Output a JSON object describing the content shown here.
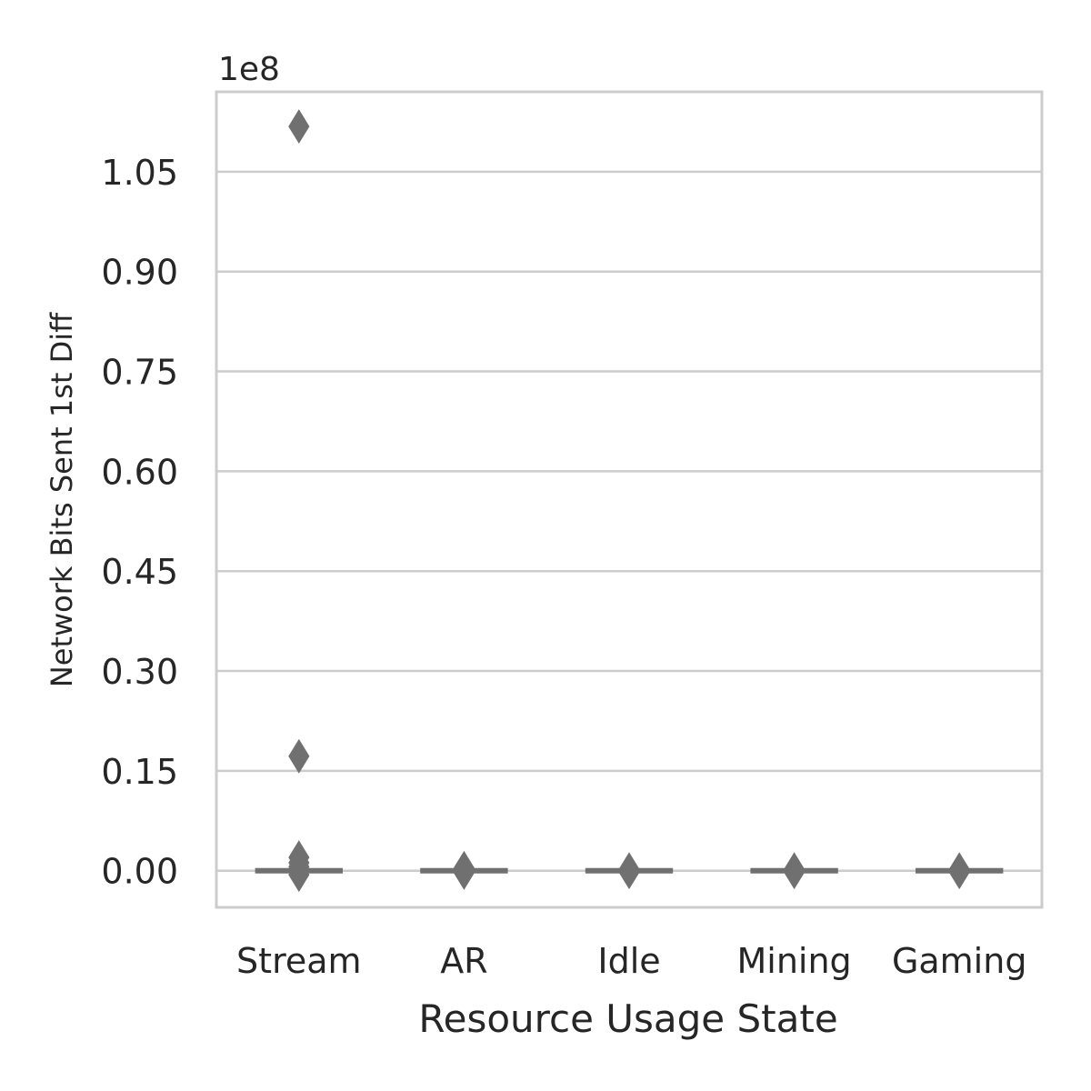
{
  "chart_data": {
    "type": "box",
    "title": "",
    "xlabel": "Resource Usage State",
    "ylabel": "Network Bits Sent 1st Diff",
    "offset_label": "1e8",
    "y_scale_factor": 100000000,
    "categories": [
      "Stream",
      "AR",
      "Idle",
      "Mining",
      "Gaming"
    ],
    "yticks": [
      0.0,
      0.15,
      0.3,
      0.45,
      0.6,
      0.75,
      0.9,
      1.05
    ],
    "ytick_labels": [
      "0.00",
      "0.15",
      "0.30",
      "0.45",
      "0.60",
      "0.75",
      "0.90",
      "1.05"
    ],
    "ylim": [
      -0.055,
      1.17
    ],
    "grid": true,
    "boxes": [
      {
        "category": "Stream",
        "q1": 0.0,
        "median": 0.0,
        "q3": 0.0,
        "whisker_low": 0.0,
        "whisker_high": 0.0,
        "outliers": [
          1.118,
          0.172,
          0.02,
          0.012,
          0.006,
          0.002,
          -0.006
        ]
      },
      {
        "category": "AR",
        "q1": 0.0,
        "median": 0.0,
        "q3": 0.0,
        "whisker_low": 0.0,
        "whisker_high": 0.0,
        "outliers": [
          0.004,
          0.0,
          -0.003
        ]
      },
      {
        "category": "Idle",
        "q1": 0.0,
        "median": 0.0,
        "q3": 0.0,
        "whisker_low": 0.0,
        "whisker_high": 0.0,
        "outliers": [
          0.002,
          0.0,
          -0.002
        ]
      },
      {
        "category": "Mining",
        "q1": 0.0,
        "median": 0.0,
        "q3": 0.0,
        "whisker_low": 0.0,
        "whisker_high": 0.0,
        "outliers": [
          0.002,
          0.0,
          -0.002
        ]
      },
      {
        "category": "Gaming",
        "q1": 0.0,
        "median": 0.0,
        "q3": 0.0,
        "whisker_low": 0.0,
        "whisker_high": 0.0,
        "outliers": [
          0.002,
          0.0,
          -0.002
        ]
      }
    ],
    "colors": {
      "mark": "#707070",
      "grid": "#cccccc",
      "spine": "#cccccc",
      "text": "#262626"
    }
  }
}
